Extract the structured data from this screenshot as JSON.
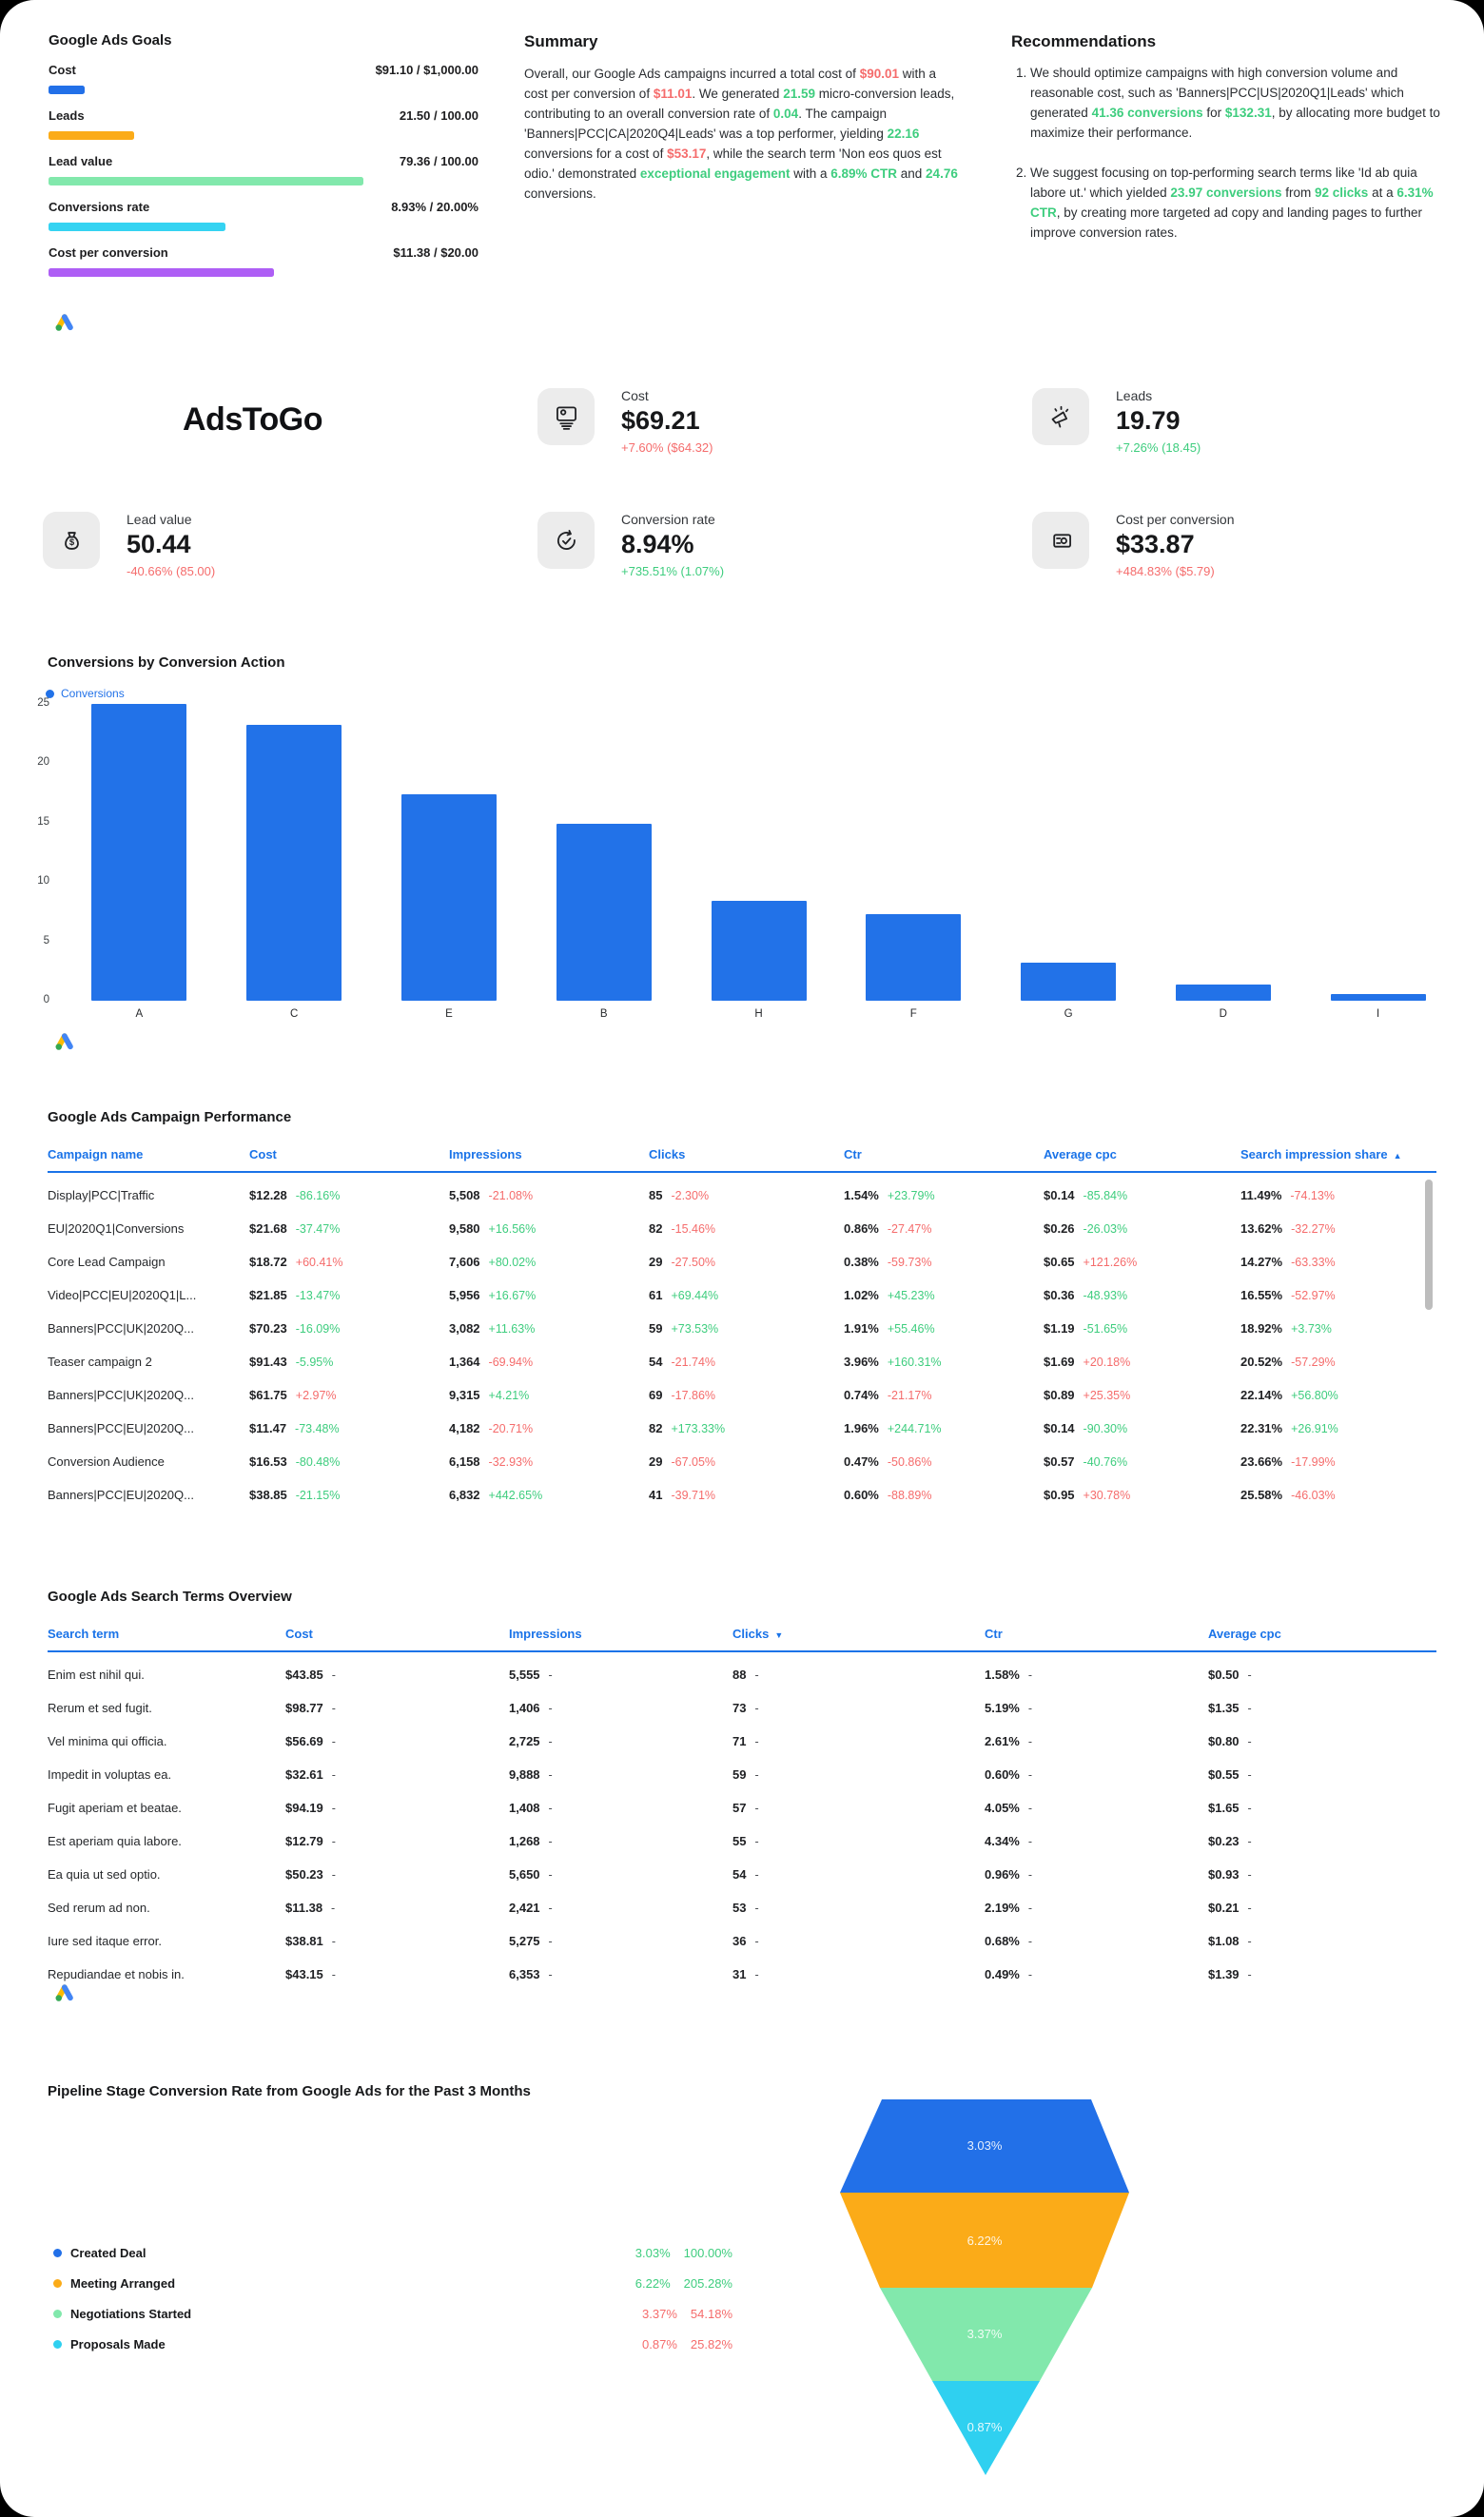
{
  "brand": "AdsToGo",
  "theme": {
    "accent_blue": "#1a73e8",
    "bar_blue": "#2272E8",
    "positive_green": "#3ECD7E",
    "negative_red": "#F56C6C"
  },
  "goals": {
    "title": "Google Ads Goals",
    "items": [
      {
        "label": "Cost",
        "value": "$91.10 / $1,000.00",
        "pct": 9.11,
        "color": "#2270E8"
      },
      {
        "label": "Leads",
        "value": "21.50 / 100.00",
        "pct": 21.5,
        "color": "#FBAB18"
      },
      {
        "label": "Lead value",
        "value": "79.36 / 100.00",
        "pct": 79.36,
        "color": "#82E8AC"
      },
      {
        "label": "Conversions rate",
        "value": "8.93% / 20.00%",
        "pct": 44.65,
        "color": "#35D3F2"
      },
      {
        "label": "Cost per conversion",
        "value": "$11.38 / $20.00",
        "pct": 56.9,
        "color": "#AE5EF5"
      }
    ]
  },
  "summary": {
    "title": "Summary",
    "segments": [
      {
        "t": "Overall, our Google Ads campaigns incurred a total cost of "
      },
      {
        "t": "$90.01",
        "c": "red"
      },
      {
        "t": " with a cost per conversion of "
      },
      {
        "t": "$11.01",
        "c": "red"
      },
      {
        "t": ". We generated "
      },
      {
        "t": "21.59",
        "c": "green"
      },
      {
        "t": " micro-conversion leads, contributing to an overall conversion rate of "
      },
      {
        "t": "0.04",
        "c": "green"
      },
      {
        "t": ". The campaign 'Banners|PCC|CA|2020Q4|Leads' was a top performer, yielding "
      },
      {
        "t": "22.16",
        "c": "green"
      },
      {
        "t": " conversions for a cost of "
      },
      {
        "t": "$53.17",
        "c": "red"
      },
      {
        "t": ", while the search term 'Non eos quos est odio.' demonstrated "
      },
      {
        "t": "exceptional engagement",
        "c": "green"
      },
      {
        "t": " with a "
      },
      {
        "t": "6.89% CTR",
        "c": "green"
      },
      {
        "t": " and "
      },
      {
        "t": "24.76",
        "c": "green"
      },
      {
        "t": " conversions."
      }
    ]
  },
  "recommendations": {
    "title": "Recommendations",
    "items": [
      {
        "segments": [
          {
            "t": "We should optimize campaigns with high conversion volume and reasonable cost, such as 'Banners|PCC|US|2020Q1|Leads' which generated "
          },
          {
            "t": "41.36 conversions",
            "c": "green"
          },
          {
            "t": " for "
          },
          {
            "t": "$132.31",
            "c": "green"
          },
          {
            "t": ", by allocating more budget to maximize their performance."
          }
        ]
      },
      {
        "segments": [
          {
            "t": "We suggest focusing on top-performing search terms like 'Id ab quia labore ut.' which yielded "
          },
          {
            "t": "23.97 conversions",
            "c": "green"
          },
          {
            "t": " from "
          },
          {
            "t": "92 clicks",
            "c": "green"
          },
          {
            "t": " at a "
          },
          {
            "t": "6.31% CTR",
            "c": "green"
          },
          {
            "t": ", by creating more targeted ad copy and landing pages to further improve conversion rates."
          }
        ]
      }
    ]
  },
  "kpis": [
    {
      "label": "Cost",
      "value": "$69.21",
      "delta": "+7.60% ($64.32)",
      "delta_color": "red",
      "icon": "billboard-icon"
    },
    {
      "label": "Leads",
      "value": "19.79",
      "delta": "+7.26% (18.45)",
      "delta_color": "green",
      "icon": "megaphone-icon"
    },
    {
      "label": "Lead value",
      "value": "50.44",
      "delta": "-40.66% (85.00)",
      "delta_color": "red",
      "icon": "money-bag-icon"
    },
    {
      "label": "Conversion rate",
      "value": "8.94%",
      "delta": "+735.51% (1.07%)",
      "delta_color": "green",
      "icon": "sync-check-icon"
    },
    {
      "label": "Cost per conversion",
      "value": "$33.87",
      "delta": "+484.83% ($5.79)",
      "delta_color": "red",
      "icon": "card-icon"
    }
  ],
  "chart_data": [
    {
      "type": "bar",
      "title": "Conversions by Conversion Action",
      "legend": [
        "Conversions"
      ],
      "legend_position": "top-left",
      "categories": [
        "A",
        "C",
        "E",
        "B",
        "H",
        "F",
        "G",
        "D",
        "I"
      ],
      "values": [
        25,
        23.2,
        17.4,
        14.9,
        8.4,
        7.3,
        3.2,
        1.4,
        0.6
      ],
      "xlabel": "",
      "ylabel": "",
      "ylim": [
        0,
        25
      ],
      "yticks": [
        0,
        5,
        10,
        15,
        20,
        25
      ],
      "grid": false,
      "bar_color": "#2272E8"
    },
    {
      "type": "funnel",
      "title": "Pipeline Stage Conversion Rate from Google Ads for the Past 3 Months",
      "stages": [
        {
          "label": "Created Deal",
          "rate_text": "3.03%",
          "share_text": "100.00%",
          "rate_pct": 3.03,
          "share_pct": 100.0,
          "color": "#2270E8",
          "trend": "positive"
        },
        {
          "label": "Meeting Arranged",
          "rate_text": "6.22%",
          "share_text": "205.28%",
          "rate_pct": 6.22,
          "share_pct": 205.28,
          "color": "#FBAB18",
          "trend": "positive"
        },
        {
          "label": "Negotiations Started",
          "rate_text": "3.37%",
          "share_text": "54.18%",
          "rate_pct": 3.37,
          "share_pct": 54.18,
          "color": "#82E8AC",
          "trend": "negative"
        },
        {
          "label": "Proposals Made",
          "rate_text": "0.87%",
          "share_text": "25.82%",
          "rate_pct": 0.87,
          "share_pct": 25.82,
          "color": "#2FD0F0",
          "trend": "negative"
        }
      ]
    }
  ],
  "campaign_table": {
    "title": "Google Ads Campaign Performance",
    "columns": [
      {
        "label": "Campaign name"
      },
      {
        "label": "Cost"
      },
      {
        "label": "Impressions"
      },
      {
        "label": "Clicks"
      },
      {
        "label": "Ctr"
      },
      {
        "label": "Average cpc"
      },
      {
        "label": "Search impression share",
        "sort": "asc"
      }
    ],
    "rows": [
      {
        "name": "Display|PCC|Traffic",
        "cells": [
          [
            "$12.28",
            "-86.16%",
            "g"
          ],
          [
            "5,508",
            "-21.08%",
            "r"
          ],
          [
            "85",
            "-2.30%",
            "r"
          ],
          [
            "1.54%",
            "+23.79%",
            "g"
          ],
          [
            "$0.14",
            "-85.84%",
            "g"
          ],
          [
            "11.49%",
            "-74.13%",
            "r"
          ]
        ]
      },
      {
        "name": "EU|2020Q1|Conversions",
        "cells": [
          [
            "$21.68",
            "-37.47%",
            "g"
          ],
          [
            "9,580",
            "+16.56%",
            "g"
          ],
          [
            "82",
            "-15.46%",
            "r"
          ],
          [
            "0.86%",
            "-27.47%",
            "r"
          ],
          [
            "$0.26",
            "-26.03%",
            "g"
          ],
          [
            "13.62%",
            "-32.27%",
            "r"
          ]
        ]
      },
      {
        "name": "Core Lead Campaign",
        "cells": [
          [
            "$18.72",
            "+60.41%",
            "r"
          ],
          [
            "7,606",
            "+80.02%",
            "g"
          ],
          [
            "29",
            "-27.50%",
            "r"
          ],
          [
            "0.38%",
            "-59.73%",
            "r"
          ],
          [
            "$0.65",
            "+121.26%",
            "r"
          ],
          [
            "14.27%",
            "-63.33%",
            "r"
          ]
        ]
      },
      {
        "name": "Video|PCC|EU|2020Q1|L...",
        "cells": [
          [
            "$21.85",
            "-13.47%",
            "g"
          ],
          [
            "5,956",
            "+16.67%",
            "g"
          ],
          [
            "61",
            "+69.44%",
            "g"
          ],
          [
            "1.02%",
            "+45.23%",
            "g"
          ],
          [
            "$0.36",
            "-48.93%",
            "g"
          ],
          [
            "16.55%",
            "-52.97%",
            "r"
          ]
        ]
      },
      {
        "name": "Banners|PCC|UK|2020Q...",
        "cells": [
          [
            "$70.23",
            "-16.09%",
            "g"
          ],
          [
            "3,082",
            "+11.63%",
            "g"
          ],
          [
            "59",
            "+73.53%",
            "g"
          ],
          [
            "1.91%",
            "+55.46%",
            "g"
          ],
          [
            "$1.19",
            "-51.65%",
            "g"
          ],
          [
            "18.92%",
            "+3.73%",
            "g"
          ]
        ]
      },
      {
        "name": "Teaser campaign 2",
        "cells": [
          [
            "$91.43",
            "-5.95%",
            "g"
          ],
          [
            "1,364",
            "-69.94%",
            "r"
          ],
          [
            "54",
            "-21.74%",
            "r"
          ],
          [
            "3.96%",
            "+160.31%",
            "g"
          ],
          [
            "$1.69",
            "+20.18%",
            "r"
          ],
          [
            "20.52%",
            "-57.29%",
            "r"
          ]
        ]
      },
      {
        "name": "Banners|PCC|UK|2020Q...",
        "cells": [
          [
            "$61.75",
            "+2.97%",
            "r"
          ],
          [
            "9,315",
            "+4.21%",
            "g"
          ],
          [
            "69",
            "-17.86%",
            "r"
          ],
          [
            "0.74%",
            "-21.17%",
            "r"
          ],
          [
            "$0.89",
            "+25.35%",
            "r"
          ],
          [
            "22.14%",
            "+56.80%",
            "g"
          ]
        ]
      },
      {
        "name": "Banners|PCC|EU|2020Q...",
        "cells": [
          [
            "$11.47",
            "-73.48%",
            "g"
          ],
          [
            "4,182",
            "-20.71%",
            "r"
          ],
          [
            "82",
            "+173.33%",
            "g"
          ],
          [
            "1.96%",
            "+244.71%",
            "g"
          ],
          [
            "$0.14",
            "-90.30%",
            "g"
          ],
          [
            "22.31%",
            "+26.91%",
            "g"
          ]
        ]
      },
      {
        "name": "Conversion Audience",
        "cells": [
          [
            "$16.53",
            "-80.48%",
            "g"
          ],
          [
            "6,158",
            "-32.93%",
            "r"
          ],
          [
            "29",
            "-67.05%",
            "r"
          ],
          [
            "0.47%",
            "-50.86%",
            "r"
          ],
          [
            "$0.57",
            "-40.76%",
            "g"
          ],
          [
            "23.66%",
            "-17.99%",
            "r"
          ]
        ]
      },
      {
        "name": "Banners|PCC|EU|2020Q...",
        "cells": [
          [
            "$38.85",
            "-21.15%",
            "g"
          ],
          [
            "6,832",
            "+442.65%",
            "g"
          ],
          [
            "41",
            "-39.71%",
            "r"
          ],
          [
            "0.60%",
            "-88.89%",
            "r"
          ],
          [
            "$0.95",
            "+30.78%",
            "r"
          ],
          [
            "25.58%",
            "-46.03%",
            "r"
          ]
        ]
      }
    ]
  },
  "search_table": {
    "title": "Google Ads Search Terms Overview",
    "columns": [
      {
        "label": "Search term"
      },
      {
        "label": "Cost"
      },
      {
        "label": "Impressions"
      },
      {
        "label": "Clicks",
        "sort": "desc"
      },
      {
        "label": "Ctr"
      },
      {
        "label": "Average cpc"
      }
    ],
    "rows": [
      {
        "name": "Enim est nihil qui.",
        "cells": [
          [
            "$43.85",
            "-"
          ],
          [
            "5,555",
            "-"
          ],
          [
            "88",
            "-"
          ],
          [
            "1.58%",
            "-"
          ],
          [
            "$0.50",
            "-"
          ]
        ]
      },
      {
        "name": "Rerum et sed fugit.",
        "cells": [
          [
            "$98.77",
            "-"
          ],
          [
            "1,406",
            "-"
          ],
          [
            "73",
            "-"
          ],
          [
            "5.19%",
            "-"
          ],
          [
            "$1.35",
            "-"
          ]
        ]
      },
      {
        "name": "Vel minima qui officia.",
        "cells": [
          [
            "$56.69",
            "-"
          ],
          [
            "2,725",
            "-"
          ],
          [
            "71",
            "-"
          ],
          [
            "2.61%",
            "-"
          ],
          [
            "$0.80",
            "-"
          ]
        ]
      },
      {
        "name": "Impedit in voluptas ea.",
        "cells": [
          [
            "$32.61",
            "-"
          ],
          [
            "9,888",
            "-"
          ],
          [
            "59",
            "-"
          ],
          [
            "0.60%",
            "-"
          ],
          [
            "$0.55",
            "-"
          ]
        ]
      },
      {
        "name": "Fugit aperiam et beatae.",
        "cells": [
          [
            "$94.19",
            "-"
          ],
          [
            "1,408",
            "-"
          ],
          [
            "57",
            "-"
          ],
          [
            "4.05%",
            "-"
          ],
          [
            "$1.65",
            "-"
          ]
        ]
      },
      {
        "name": "Est aperiam quia labore.",
        "cells": [
          [
            "$12.79",
            "-"
          ],
          [
            "1,268",
            "-"
          ],
          [
            "55",
            "-"
          ],
          [
            "4.34%",
            "-"
          ],
          [
            "$0.23",
            "-"
          ]
        ]
      },
      {
        "name": "Ea quia ut sed optio.",
        "cells": [
          [
            "$50.23",
            "-"
          ],
          [
            "5,650",
            "-"
          ],
          [
            "54",
            "-"
          ],
          [
            "0.96%",
            "-"
          ],
          [
            "$0.93",
            "-"
          ]
        ]
      },
      {
        "name": "Sed rerum ad non.",
        "cells": [
          [
            "$11.38",
            "-"
          ],
          [
            "2,421",
            "-"
          ],
          [
            "53",
            "-"
          ],
          [
            "2.19%",
            "-"
          ],
          [
            "$0.21",
            "-"
          ]
        ]
      },
      {
        "name": "Iure sed itaque error.",
        "cells": [
          [
            "$38.81",
            "-"
          ],
          [
            "5,275",
            "-"
          ],
          [
            "36",
            "-"
          ],
          [
            "0.68%",
            "-"
          ],
          [
            "$1.08",
            "-"
          ]
        ]
      },
      {
        "name": "Repudiandae et nobis in.",
        "cells": [
          [
            "$43.15",
            "-"
          ],
          [
            "6,353",
            "-"
          ],
          [
            "31",
            "-"
          ],
          [
            "0.49%",
            "-"
          ],
          [
            "$1.39",
            "-"
          ]
        ]
      }
    ]
  }
}
